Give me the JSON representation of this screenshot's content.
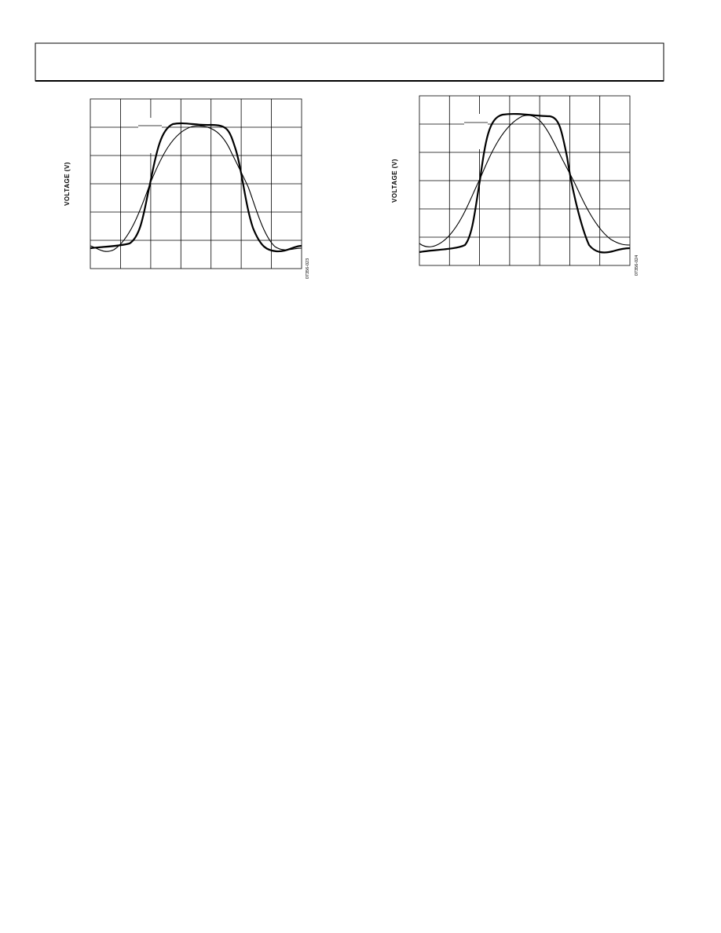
{
  "figures": [
    {
      "y_axis_label": "VOLTAGE (V)",
      "code": "07356-023"
    },
    {
      "y_axis_label": "VOLTAGE (V)",
      "code": "07356-024"
    }
  ]
}
